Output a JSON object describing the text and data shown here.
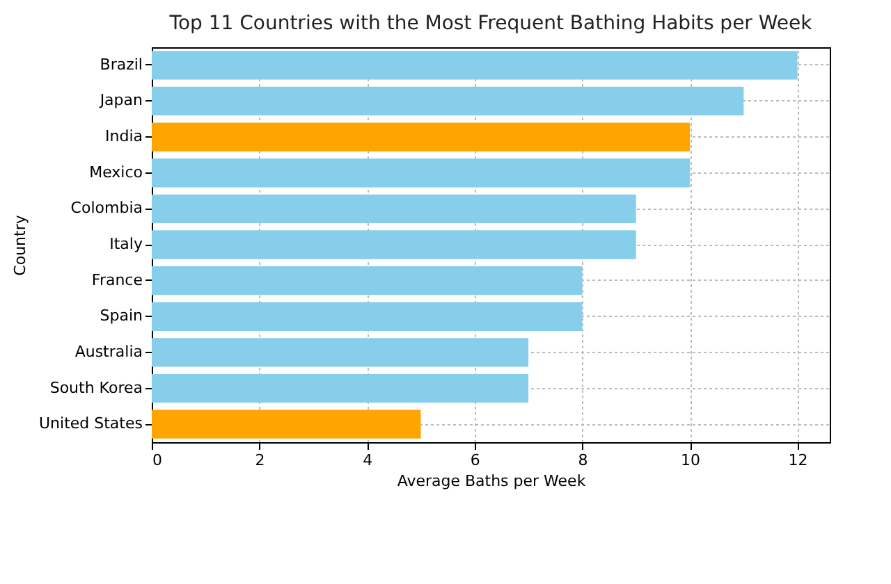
{
  "chart_data": {
    "type": "bar",
    "orientation": "horizontal",
    "title": "Top 11 Countries with the Most Frequent Bathing Habits per Week",
    "xlabel": "Average Baths per Week",
    "ylabel": "Country",
    "categories": [
      "Brazil",
      "Japan",
      "India",
      "Mexico",
      "Colombia",
      "Italy",
      "France",
      "Spain",
      "Australia",
      "South Korea",
      "United States"
    ],
    "values": [
      12,
      11,
      10,
      10,
      9,
      9,
      8,
      8,
      7,
      7,
      5
    ],
    "colors": [
      "#87ceeb",
      "#87ceeb",
      "#ffa500",
      "#87ceeb",
      "#87ceeb",
      "#87ceeb",
      "#87ceeb",
      "#87ceeb",
      "#87ceeb",
      "#87ceeb",
      "#ffa500"
    ],
    "xlim": [
      0,
      12.6
    ],
    "xticks": [
      0,
      2,
      4,
      6,
      8,
      10,
      12
    ],
    "grid": true
  }
}
